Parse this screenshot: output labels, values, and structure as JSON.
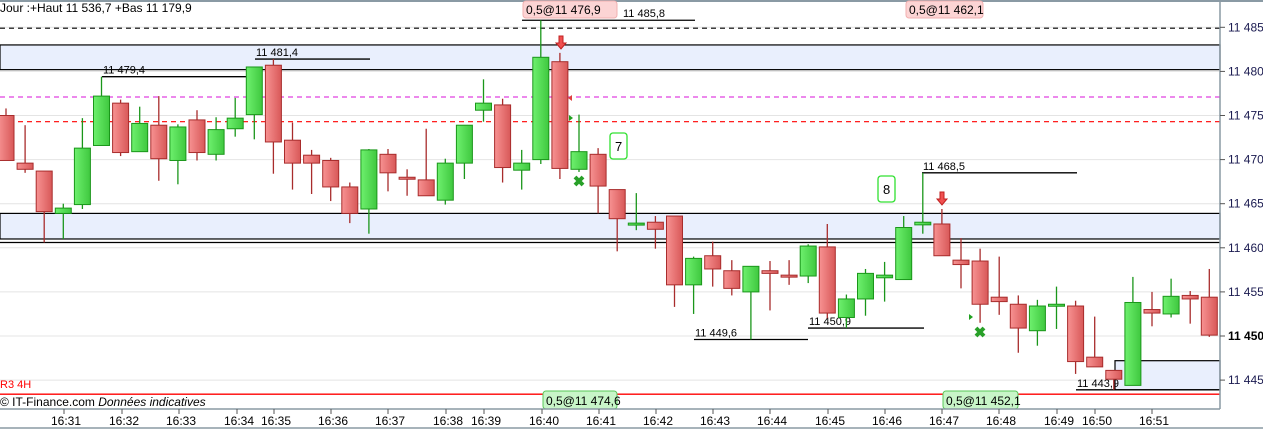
{
  "header": {
    "text": "Jour :+Haut 11 536,7 +Bas 11 179,9"
  },
  "footer": {
    "r3_label": "R3 4H",
    "copyright": "© IT-Finance.com",
    "disclaimer": "Données indicatives"
  },
  "colors": {
    "up_fill": "#5fe35f",
    "up_border": "#1a961a",
    "down_fill": "#f27d7d",
    "down_border": "#a82c2c",
    "zone_fill": "#e9effd",
    "magenta_level": "#e040e0",
    "red_level": "#ff0000"
  },
  "chart_data": {
    "type": "candlestick",
    "ylim": [
      11442.5,
      11488.5
    ],
    "yticks": [
      11445,
      11450,
      11455,
      11460,
      11465,
      11470,
      11475,
      11480,
      11485
    ],
    "ytick_labels": [
      "11 445",
      "11 450",
      "11 455",
      "11 460",
      "11 465",
      "11 470",
      "11 475",
      "11 480",
      "11 485"
    ],
    "current_price_label": "11 450",
    "xtick_labels": [
      "16:31",
      "16:32",
      "16:33",
      "16:34",
      "16:35",
      "16:36",
      "16:37",
      "16:38",
      "16:39",
      "16:40",
      "16:41",
      "16:42",
      "16:43",
      "16:44",
      "16:45",
      "16:46",
      "16:47",
      "16:48",
      "16:49",
      "16:50",
      "16:51"
    ],
    "grid": true,
    "candles_ohlc": [
      [
        11475.0,
        11475.8,
        11469.9,
        11469.9
      ],
      [
        11469.6,
        11473.9,
        11468.5,
        11468.9
      ],
      [
        11468.7,
        11468.7,
        11460.6,
        11464.1
      ],
      [
        11463.9,
        11465.0,
        11461.0,
        11464.5
      ],
      [
        11464.9,
        11474.7,
        11464.4,
        11471.3
      ],
      [
        11471.6,
        11479.4,
        11471.6,
        11477.2
      ],
      [
        11476.4,
        11476.8,
        11470.4,
        11470.8
      ],
      [
        11470.9,
        11476.0,
        11470.9,
        11474.1
      ],
      [
        11473.9,
        11477.2,
        11467.6,
        11470.1
      ],
      [
        11469.9,
        11474.0,
        11467.2,
        11473.7
      ],
      [
        11474.5,
        11475.6,
        11469.9,
        11470.8
      ],
      [
        11470.6,
        11474.8,
        11469.9,
        11473.4
      ],
      [
        11473.5,
        11477.0,
        11472.6,
        11474.7
      ],
      [
        11475.1,
        11480.5,
        11472.3,
        11480.5
      ],
      [
        11480.7,
        11481.4,
        11468.4,
        11472.0
      ],
      [
        11472.2,
        11474.2,
        11466.6,
        11469.6
      ],
      [
        11470.5,
        11471.1,
        11466.1,
        11469.6
      ],
      [
        11469.9,
        11470.2,
        11465.3,
        11466.9
      ],
      [
        11466.9,
        11467.4,
        11462.8,
        11463.9
      ],
      [
        11464.4,
        11471.2,
        11461.6,
        11471.1
      ],
      [
        11470.6,
        11471.2,
        11466.4,
        11468.5
      ],
      [
        11468.0,
        11468.9,
        11465.9,
        11467.9
      ],
      [
        11467.7,
        11473.5,
        11465.9,
        11465.9
      ],
      [
        11465.4,
        11470.1,
        11464.9,
        11469.6
      ],
      [
        11469.6,
        11473.9,
        11467.8,
        11473.9
      ],
      [
        11475.6,
        11479.1,
        11474.3,
        11476.4
      ],
      [
        11476.2,
        11476.9,
        11467.4,
        11469.1
      ],
      [
        11468.8,
        11471.1,
        11466.6,
        11469.6
      ],
      [
        11470.0,
        11485.8,
        11469.5,
        11481.6
      ],
      [
        11481.1,
        11482.1,
        11467.8,
        11469.0
      ],
      [
        11468.9,
        11475.1,
        11468.6,
        11470.9
      ],
      [
        11470.6,
        11471.3,
        11463.9,
        11467.0
      ],
      [
        11466.6,
        11466.6,
        11459.6,
        11463.3
      ],
      [
        11462.7,
        11466.2,
        11462.0,
        11462.8
      ],
      [
        11462.9,
        11463.6,
        11459.9,
        11462.1
      ],
      [
        11463.6,
        11463.6,
        11453.3,
        11455.8
      ],
      [
        11455.8,
        11459.0,
        11452.5,
        11458.8
      ],
      [
        11459.1,
        11460.7,
        11455.6,
        11457.6
      ],
      [
        11457.4,
        11458.6,
        11454.6,
        11455.4
      ],
      [
        11455.0,
        11457.9,
        11449.6,
        11457.9
      ],
      [
        11457.4,
        11458.5,
        11452.9,
        11457.1
      ],
      [
        11456.9,
        11458.6,
        11455.8,
        11456.7
      ],
      [
        11456.8,
        11460.4,
        11456.0,
        11460.2
      ],
      [
        11460.1,
        11462.7,
        11452.0,
        11452.6
      ],
      [
        11452.1,
        11454.7,
        11450.9,
        11454.2
      ],
      [
        11454.2,
        11457.6,
        11452.3,
        11457.1
      ],
      [
        11456.6,
        11458.4,
        11453.9,
        11456.9
      ],
      [
        11456.4,
        11463.6,
        11456.4,
        11462.3
      ],
      [
        11462.6,
        11468.5,
        11461.6,
        11462.9
      ],
      [
        11462.7,
        11464.4,
        11459.1,
        11459.1
      ],
      [
        11458.6,
        11461.1,
        11455.4,
        11458.1
      ],
      [
        11458.5,
        11459.9,
        11451.5,
        11453.6
      ],
      [
        11454.4,
        11459.0,
        11452.4,
        11453.9
      ],
      [
        11453.6,
        11454.6,
        11448.1,
        11450.9
      ],
      [
        11450.6,
        11454.1,
        11448.9,
        11453.4
      ],
      [
        11453.5,
        11455.6,
        11450.8,
        11453.6
      ],
      [
        11453.4,
        11454.0,
        11445.7,
        11447.1
      ],
      [
        11447.6,
        11452.2,
        11446.5,
        11446.5
      ],
      [
        11446.1,
        11446.1,
        11443.9,
        11445.1
      ],
      [
        11444.4,
        11456.7,
        11444.4,
        11453.8
      ],
      [
        11453.0,
        11455.0,
        11451.1,
        11452.6
      ],
      [
        11452.5,
        11456.5,
        11452.1,
        11454.5
      ],
      [
        11454.6,
        11455.1,
        11451.4,
        11454.2
      ],
      [
        11454.4,
        11457.6,
        11449.9,
        11450.1
      ]
    ],
    "zones": [
      [
        11480.2,
        11483.0
      ],
      [
        11461.0,
        11463.9
      ],
      [
        11443.9,
        11447.2
      ]
    ],
    "dashed_levels": [
      {
        "price": 11484.9,
        "color": "#000000"
      },
      {
        "price": 11477.1,
        "color": "#e040e0"
      },
      {
        "price": 11474.3,
        "color": "#ff0000"
      }
    ],
    "solid_levels": [
      {
        "price": 11460.6,
        "color": "#000000"
      },
      {
        "price": 11443.4,
        "color": "#ff0000"
      }
    ],
    "swing_labels": [
      {
        "text": "11 479,4",
        "price": 11479.4
      },
      {
        "text": "11 481,4",
        "price": 11481.4
      },
      {
        "text": "11 485,8",
        "price": 11485.8
      },
      {
        "text": "11 468,5",
        "price": 11468.5
      },
      {
        "text": "11 449,6",
        "price": 11449.6
      },
      {
        "text": "11 450,9",
        "price": 11450.9
      },
      {
        "text": "11 443,9",
        "price": 11443.9
      }
    ],
    "order_tags_top": [
      "0,5@11 476,9",
      "0,5@11 462,1"
    ],
    "order_tags_bottom": [
      "0,5@11 474,6",
      "0,5@11 452,1"
    ],
    "count_labels": [
      "7",
      "8"
    ]
  }
}
